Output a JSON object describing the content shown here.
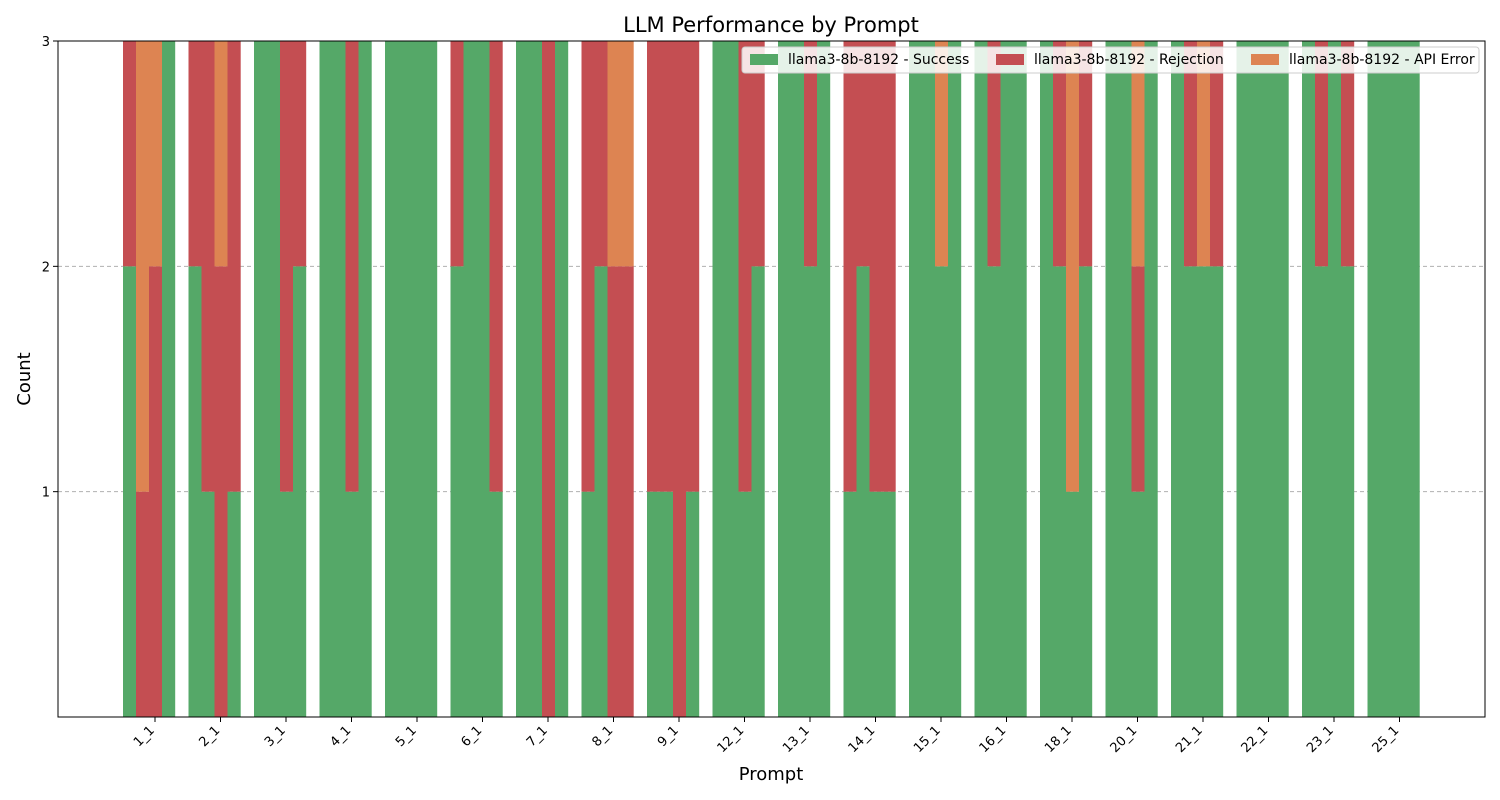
{
  "chart_data": {
    "type": "bar",
    "title": "LLM Performance by Prompt",
    "xlabel": "Prompt",
    "ylabel": "Count",
    "ylim": [
      0,
      3
    ],
    "yticks": [
      1,
      2,
      3
    ],
    "grid": "y dashed",
    "legend_placement": "top-right",
    "categories": [
      "1_1",
      "2_1",
      "3_1",
      "4_1",
      "5_1",
      "6_1",
      "7_1",
      "8_1",
      "9_1",
      "12_1",
      "13_1",
      "14_1",
      "15_1",
      "16_1",
      "18_1",
      "20_1",
      "21_1",
      "22_1",
      "23_1",
      "25_1"
    ],
    "series": [
      {
        "name": "llama3-8b-8192 - Success",
        "color": "#55a868"
      },
      {
        "name": "llama3-8b-8192 - Rejection",
        "color": "#c44e52"
      },
      {
        "name": "llama3-8b-8192 - API Error",
        "color": "#dd8452"
      }
    ],
    "runs": [
      [
        [
          2,
          1,
          0
        ],
        [
          0,
          1,
          2
        ],
        [
          0,
          2,
          1
        ],
        [
          3,
          0,
          0
        ]
      ],
      [
        [
          2,
          1,
          0
        ],
        [
          1,
          2,
          0
        ],
        [
          0,
          2,
          1
        ],
        [
          1,
          2,
          0
        ]
      ],
      [
        [
          3,
          0,
          0
        ],
        [
          3,
          0,
          0
        ],
        [
          1,
          2,
          0
        ],
        [
          2,
          1,
          0
        ]
      ],
      [
        [
          3,
          0,
          0
        ],
        [
          3,
          0,
          0
        ],
        [
          1,
          2,
          0
        ],
        [
          3,
          0,
          0
        ]
      ],
      [
        [
          3,
          0,
          0
        ],
        [
          3,
          0,
          0
        ],
        [
          3,
          0,
          0
        ],
        [
          3,
          0,
          0
        ]
      ],
      [
        [
          2,
          1,
          0
        ],
        [
          3,
          0,
          0
        ],
        [
          3,
          0,
          0
        ],
        [
          1,
          2,
          0
        ]
      ],
      [
        [
          3,
          0,
          0
        ],
        [
          3,
          0,
          0
        ],
        [
          0,
          3,
          0
        ],
        [
          3,
          0,
          0
        ]
      ],
      [
        [
          1,
          2,
          0
        ],
        [
          2,
          1,
          0
        ],
        [
          0,
          2,
          1
        ],
        [
          0,
          2,
          1
        ]
      ],
      [
        [
          1,
          2,
          0
        ],
        [
          1,
          2,
          0
        ],
        [
          0,
          3,
          0
        ],
        [
          1,
          2,
          0
        ]
      ],
      [
        [
          3,
          0,
          0
        ],
        [
          3,
          0,
          0
        ],
        [
          1,
          2,
          0
        ],
        [
          2,
          1,
          0
        ]
      ],
      [
        [
          3,
          0,
          0
        ],
        [
          3,
          0,
          0
        ],
        [
          2,
          1,
          0
        ],
        [
          3,
          0,
          0
        ]
      ],
      [
        [
          1,
          2,
          0
        ],
        [
          2,
          1,
          0
        ],
        [
          1,
          2,
          0
        ],
        [
          1,
          2,
          0
        ]
      ],
      [
        [
          3,
          0,
          0
        ],
        [
          3,
          0,
          0
        ],
        [
          2,
          0,
          1
        ],
        [
          3,
          0,
          0
        ]
      ],
      [
        [
          3,
          0,
          0
        ],
        [
          2,
          1,
          0
        ],
        [
          3,
          0,
          0
        ],
        [
          3,
          0,
          0
        ]
      ],
      [
        [
          3,
          0,
          0
        ],
        [
          2,
          1,
          0
        ],
        [
          1,
          0,
          2
        ],
        [
          2,
          1,
          0
        ]
      ],
      [
        [
          3,
          0,
          0
        ],
        [
          3,
          0,
          0
        ],
        [
          1,
          1,
          1
        ],
        [
          3,
          0,
          0
        ]
      ],
      [
        [
          3,
          0,
          0
        ],
        [
          2,
          1,
          0
        ],
        [
          2,
          0,
          1
        ],
        [
          2,
          1,
          0
        ]
      ],
      [
        [
          3,
          0,
          0
        ],
        [
          3,
          0,
          0
        ],
        [
          3,
          0,
          0
        ],
        [
          3,
          0,
          0
        ]
      ],
      [
        [
          3,
          0,
          0
        ],
        [
          2,
          1,
          0
        ],
        [
          3,
          0,
          0
        ],
        [
          2,
          1,
          0
        ]
      ],
      [
        [
          3,
          0,
          0
        ],
        [
          3,
          0,
          0
        ],
        [
          3,
          0,
          0
        ],
        [
          3,
          0,
          0
        ]
      ]
    ]
  }
}
